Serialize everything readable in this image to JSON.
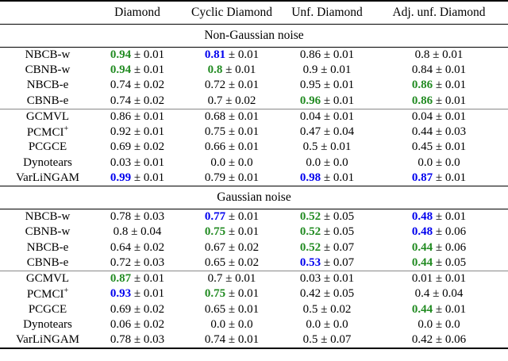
{
  "colors": {
    "green": "#228B22",
    "blue": "#0000EE",
    "text": "#000000"
  },
  "table": {
    "pm_symbol": "±",
    "columns": [
      "Diamond",
      "Cyclic Diamond",
      "Unf. Diamond",
      "Adj. unf. Diamond"
    ],
    "sections": [
      {
        "title": "Non-Gaussian noise",
        "rows": [
          {
            "method": "NBCB-w",
            "sep": false,
            "cells": [
              {
                "v": "0.94",
                "e": "0.01",
                "c": "g"
              },
              {
                "v": "0.81",
                "e": "0.01",
                "c": "b"
              },
              {
                "v": "0.86",
                "e": "0.01",
                "c": "k"
              },
              {
                "v": "0.8",
                "e": "0.01",
                "c": "k"
              }
            ]
          },
          {
            "method": "CBNB-w",
            "sep": false,
            "cells": [
              {
                "v": "0.94",
                "e": "0.01",
                "c": "g"
              },
              {
                "v": "0.8",
                "e": "0.01",
                "c": "g"
              },
              {
                "v": "0.9",
                "e": "0.01",
                "c": "k"
              },
              {
                "v": "0.84",
                "e": "0.01",
                "c": "k"
              }
            ]
          },
          {
            "method": "NBCB-e",
            "sep": false,
            "cells": [
              {
                "v": "0.74",
                "e": "0.02",
                "c": "k"
              },
              {
                "v": "0.72",
                "e": "0.01",
                "c": "k"
              },
              {
                "v": "0.95",
                "e": "0.01",
                "c": "k"
              },
              {
                "v": "0.86",
                "e": "0.01",
                "c": "g"
              }
            ]
          },
          {
            "method": "CBNB-e",
            "sep": false,
            "cells": [
              {
                "v": "0.74",
                "e": "0.02",
                "c": "k"
              },
              {
                "v": "0.7",
                "e": "0.02",
                "c": "k"
              },
              {
                "v": "0.96",
                "e": "0.01",
                "c": "g"
              },
              {
                "v": "0.86",
                "e": "0.01",
                "c": "g"
              }
            ]
          },
          {
            "method": "GCMVL",
            "sep": true,
            "cells": [
              {
                "v": "0.86",
                "e": "0.01",
                "c": "k"
              },
              {
                "v": "0.68",
                "e": "0.01",
                "c": "k"
              },
              {
                "v": "0.04",
                "e": "0.01",
                "c": "k"
              },
              {
                "v": "0.04",
                "e": "0.01",
                "c": "k"
              }
            ]
          },
          {
            "method": "PCMCI",
            "method_sup": "+",
            "sep": false,
            "cells": [
              {
                "v": "0.92",
                "e": "0.01",
                "c": "k"
              },
              {
                "v": "0.75",
                "e": "0.01",
                "c": "k"
              },
              {
                "v": "0.47",
                "e": "0.04",
                "c": "k"
              },
              {
                "v": "0.44",
                "e": "0.03",
                "c": "k"
              }
            ]
          },
          {
            "method": "PCGCE",
            "sep": false,
            "cells": [
              {
                "v": "0.69",
                "e": "0.02",
                "c": "k"
              },
              {
                "v": "0.66",
                "e": "0.01",
                "c": "k"
              },
              {
                "v": "0.5",
                "e": "0.01",
                "c": "k"
              },
              {
                "v": "0.45",
                "e": "0.01",
                "c": "k"
              }
            ]
          },
          {
            "method": "Dynotears",
            "sep": false,
            "cells": [
              {
                "v": "0.03",
                "e": "0.01",
                "c": "k"
              },
              {
                "v": "0.0",
                "e": "0.0",
                "c": "k"
              },
              {
                "v": "0.0",
                "e": "0.0",
                "c": "k"
              },
              {
                "v": "0.0",
                "e": "0.0",
                "c": "k"
              }
            ]
          },
          {
            "method": "VarLiNGAM",
            "sep": false,
            "cells": [
              {
                "v": "0.99",
                "e": "0.01",
                "c": "b"
              },
              {
                "v": "0.79",
                "e": "0.01",
                "c": "k"
              },
              {
                "v": "0.98",
                "e": "0.01",
                "c": "b"
              },
              {
                "v": "0.87",
                "e": "0.01",
                "c": "b"
              }
            ]
          }
        ]
      },
      {
        "title": "Gaussian noise",
        "rows": [
          {
            "method": "NBCB-w",
            "sep": false,
            "cells": [
              {
                "v": "0.78",
                "e": "0.03",
                "c": "k"
              },
              {
                "v": "0.77",
                "e": "0.01",
                "c": "b"
              },
              {
                "v": "0.52",
                "e": "0.05",
                "c": "g"
              },
              {
                "v": "0.48",
                "e": "0.01",
                "c": "b"
              }
            ]
          },
          {
            "method": "CBNB-w",
            "sep": false,
            "cells": [
              {
                "v": "0.8",
                "e": "0.04",
                "c": "k"
              },
              {
                "v": "0.75",
                "e": "0.01",
                "c": "g"
              },
              {
                "v": "0.52",
                "e": "0.05",
                "c": "g"
              },
              {
                "v": "0.48",
                "e": "0.06",
                "c": "b"
              }
            ]
          },
          {
            "method": "NBCB-e",
            "sep": false,
            "cells": [
              {
                "v": "0.64",
                "e": "0.02",
                "c": "k"
              },
              {
                "v": "0.67",
                "e": "0.02",
                "c": "k"
              },
              {
                "v": "0.52",
                "e": "0.07",
                "c": "g"
              },
              {
                "v": "0.44",
                "e": "0.06",
                "c": "g"
              }
            ]
          },
          {
            "method": "CBNB-e",
            "sep": false,
            "cells": [
              {
                "v": "0.72",
                "e": "0.03",
                "c": "k"
              },
              {
                "v": "0.65",
                "e": "0.02",
                "c": "k"
              },
              {
                "v": "0.53",
                "e": "0.07",
                "c": "b"
              },
              {
                "v": "0.44",
                "e": "0.05",
                "c": "g"
              }
            ]
          },
          {
            "method": "GCMVL",
            "sep": true,
            "cells": [
              {
                "v": "0.87",
                "e": "0.01",
                "c": "g"
              },
              {
                "v": "0.7",
                "e": "0.01",
                "c": "k"
              },
              {
                "v": "0.03",
                "e": "0.01",
                "c": "k"
              },
              {
                "v": "0.01",
                "e": "0.01",
                "c": "k"
              }
            ]
          },
          {
            "method": "PCMCI",
            "method_sup": "+",
            "sep": false,
            "cells": [
              {
                "v": "0.93",
                "e": "0.01",
                "c": "b"
              },
              {
                "v": "0.75",
                "e": "0.01",
                "c": "g"
              },
              {
                "v": "0.42",
                "e": "0.05",
                "c": "k"
              },
              {
                "v": "0.4",
                "e": "0.04",
                "c": "k"
              }
            ]
          },
          {
            "method": "PCGCE",
            "sep": false,
            "cells": [
              {
                "v": "0.69",
                "e": "0.02",
                "c": "k"
              },
              {
                "v": "0.65",
                "e": "0.01",
                "c": "k"
              },
              {
                "v": "0.5",
                "e": "0.02",
                "c": "k"
              },
              {
                "v": "0.44",
                "e": "0.01",
                "c": "g"
              }
            ]
          },
          {
            "method": "Dynotears",
            "sep": false,
            "cells": [
              {
                "v": "0.06",
                "e": "0.02",
                "c": "k"
              },
              {
                "v": "0.0",
                "e": "0.0",
                "c": "k"
              },
              {
                "v": "0.0",
                "e": "0.0",
                "c": "k"
              },
              {
                "v": "0.0",
                "e": "0.0",
                "c": "k"
              }
            ]
          },
          {
            "method": "VarLiNGAM",
            "sep": false,
            "cells": [
              {
                "v": "0.78",
                "e": "0.03",
                "c": "k"
              },
              {
                "v": "0.74",
                "e": "0.01",
                "c": "k"
              },
              {
                "v": "0.5",
                "e": "0.07",
                "c": "k"
              },
              {
                "v": "0.42",
                "e": "0.06",
                "c": "k"
              }
            ]
          }
        ]
      }
    ]
  }
}
